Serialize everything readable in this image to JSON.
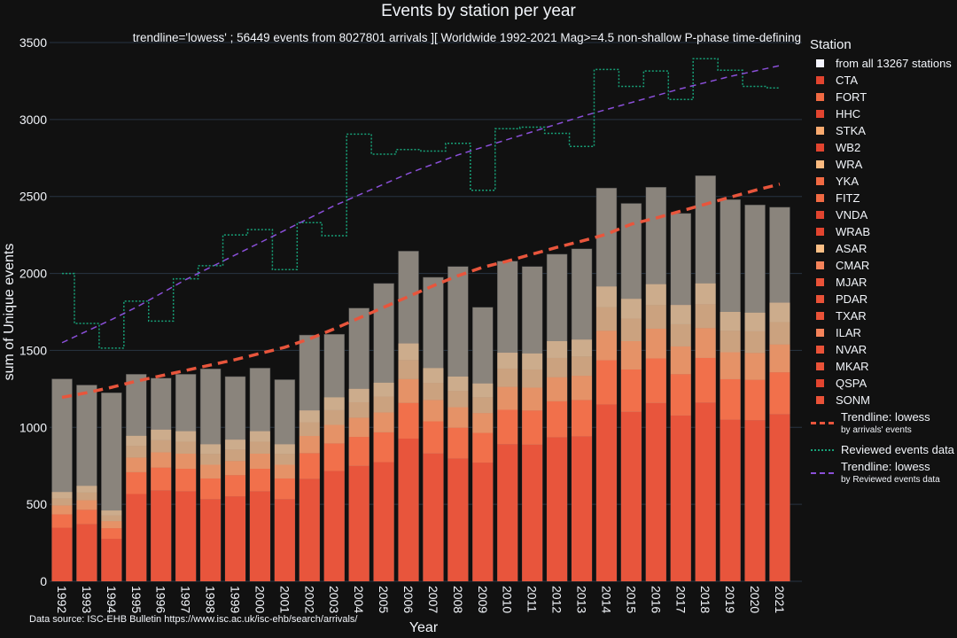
{
  "chart_data": {
    "type": "bar",
    "title": "Events by station per year",
    "subtitle": "trendline='lowess' ; 56449 events from 8027801 arrivals ][ Worldwide 1992-2021 Mag>=4.5 non-shallow P-phase time-defining",
    "xlabel": "Year",
    "ylabel": "sum of Unique events",
    "ylim": [
      0,
      3500
    ],
    "yticks": [
      0,
      500,
      1000,
      1500,
      2000,
      2500,
      3000,
      3500
    ],
    "grid": true,
    "legend_placement": "right",
    "legend_title": "Station",
    "categories": [
      "1992",
      "1993",
      "1994",
      "1995",
      "1996",
      "1997",
      "1998",
      "1999",
      "2000",
      "2001",
      "2002",
      "2003",
      "2004",
      "2005",
      "2006",
      "2007",
      "2008",
      "2009",
      "2010",
      "2011",
      "2012",
      "2013",
      "2014",
      "2015",
      "2016",
      "2017",
      "2018",
      "2019",
      "2020",
      "2021"
    ],
    "total_series": {
      "name": "from all 13267 stations",
      "color": "#8a847c",
      "values": [
        1315,
        1275,
        1225,
        1345,
        1320,
        1345,
        1380,
        1330,
        1385,
        1310,
        1600,
        1605,
        1775,
        1935,
        2145,
        1975,
        2045,
        1780,
        2080,
        2045,
        2125,
        2160,
        2555,
        2455,
        2560,
        2390,
        2635,
        2480,
        2445,
        2430
      ]
    },
    "series": [
      {
        "name": "CTA",
        "color": "#e8553c",
        "values": [
          348,
          372,
          276,
          567,
          591,
          585,
          534,
          552,
          585,
          534,
          666,
          717,
          750,
          774,
          927,
          831,
          798,
          771,
          891,
          888,
          936,
          942,
          1149,
          1101,
          1158,
          1077,
          1161,
          1050,
          1047,
          1086
        ]
      },
      {
        "name": "FORT",
        "color": "#f1704b",
        "values": [
          87,
          93,
          69,
          142,
          148,
          146,
          134,
          138,
          146,
          134,
          167,
          179,
          188,
          194,
          232,
          208,
          200,
          193,
          223,
          222,
          234,
          236,
          287,
          275,
          290,
          269,
          290,
          263,
          262,
          272
        ]
      },
      {
        "name": "STKA",
        "color": "#f59464",
        "values": [
          58,
          62,
          46,
          95,
          99,
          98,
          89,
          92,
          98,
          89,
          111,
          120,
          125,
          129,
          155,
          139,
          133,
          129,
          149,
          148,
          156,
          157,
          192,
          184,
          193,
          180,
          194,
          175,
          175,
          181
        ]
      },
      {
        "name": "WRA",
        "color": "#f7b582",
        "values": [
          46,
          50,
          37,
          76,
          79,
          78,
          71,
          74,
          78,
          71,
          89,
          96,
          100,
          103,
          124,
          111,
          106,
          103,
          119,
          118,
          125,
          126,
          153,
          147,
          154,
          144,
          155,
          140,
          140,
          145
        ]
      },
      {
        "name": "ASAR",
        "color": "#f9c797",
        "values": [
          41,
          43,
          32,
          65,
          68,
          68,
          62,
          64,
          68,
          62,
          77,
          83,
          87,
          90,
          107,
          96,
          93,
          89,
          103,
          104,
          109,
          109,
          134,
          128,
          135,
          125,
          135,
          122,
          121,
          126
        ]
      }
    ],
    "legend_stations": [
      {
        "name": "from all 13267 stations",
        "color": "#f5f5ff"
      },
      {
        "name": "CTA",
        "color": "#e2442f"
      },
      {
        "name": "FORT",
        "color": "#f16a43"
      },
      {
        "name": "HHC",
        "color": "#e2442f"
      },
      {
        "name": "STKA",
        "color": "#f9aa6f"
      },
      {
        "name": "WB2",
        "color": "#e2442f"
      },
      {
        "name": "WRA",
        "color": "#fbba7f"
      },
      {
        "name": "YKA",
        "color": "#f16a43"
      },
      {
        "name": "FITZ",
        "color": "#f16a43"
      },
      {
        "name": "VNDA",
        "color": "#e2442f"
      },
      {
        "name": "WRAB",
        "color": "#e2442f"
      },
      {
        "name": "ASAR",
        "color": "#fbbf85"
      },
      {
        "name": "CMAR",
        "color": "#f5835a"
      },
      {
        "name": "MJAR",
        "color": "#ea5238"
      },
      {
        "name": "PDAR",
        "color": "#ea5238"
      },
      {
        "name": "TXAR",
        "color": "#ea5238"
      },
      {
        "name": "ILAR",
        "color": "#f5835a"
      },
      {
        "name": "NVAR",
        "color": "#ea5238"
      },
      {
        "name": "MKAR",
        "color": "#ea5238"
      },
      {
        "name": "QSPA",
        "color": "#e2442f"
      },
      {
        "name": "SONM",
        "color": "#ea5238"
      }
    ],
    "lines": [
      {
        "name": "Trendline: lowess",
        "sub": "by arrivals' events",
        "color": "#e8553c",
        "dash": "dashed-thick",
        "values": [
          1195,
          1225,
          1260,
          1300,
          1335,
          1370,
          1405,
          1440,
          1480,
          1520,
          1575,
          1640,
          1710,
          1780,
          1850,
          1920,
          1985,
          2040,
          2080,
          2125,
          2170,
          2210,
          2255,
          2320,
          2360,
          2405,
          2450,
          2495,
          2540,
          2580
        ]
      },
      {
        "name": "Reviewed events data",
        "sub": "",
        "color": "#17a178",
        "dash": "dotted-step",
        "values": [
          2000,
          1675,
          1515,
          1820,
          1690,
          1965,
          2050,
          2250,
          2285,
          2025,
          2330,
          2245,
          2905,
          2775,
          2805,
          2795,
          2845,
          2540,
          2940,
          2950,
          2910,
          2825,
          3325,
          3215,
          3315,
          3130,
          3395,
          3320,
          3215,
          3205
        ]
      },
      {
        "name": "Trendline: lowess",
        "sub": "by Reviewed events data",
        "color": "#8a4fd8",
        "dash": "dashed-thin",
        "values": [
          1550,
          1625,
          1700,
          1780,
          1870,
          1960,
          2040,
          2120,
          2200,
          2280,
          2360,
          2440,
          2510,
          2580,
          2650,
          2710,
          2770,
          2820,
          2870,
          2920,
          2970,
          3020,
          3065,
          3110,
          3155,
          3200,
          3240,
          3280,
          3315,
          3350
        ]
      }
    ]
  },
  "footer": {
    "source": "Data source: ISC-EHB Bulletin  https://www.isc.ac.uk/isc-ehb/search/arrivals/"
  }
}
